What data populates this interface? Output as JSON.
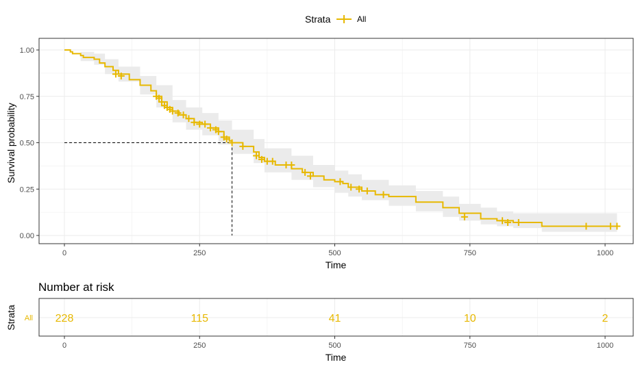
{
  "legend": {
    "title": "Strata",
    "entries": [
      "All"
    ]
  },
  "colors": {
    "series": "#E7B800",
    "band": "#ebebeb",
    "grid": "#ebebeb",
    "panel_border": "#333333",
    "text": "#000000",
    "tick_text": "#4d4d4d"
  },
  "chart_data": [
    {
      "type": "line",
      "subtype": "kaplan-meier survival curve with confidence band",
      "title": "",
      "xlabel": "Time",
      "ylabel": "Survival probability",
      "xlim": [
        0,
        1022
      ],
      "ylim": [
        0,
        1
      ],
      "x_ticks": [
        0,
        250,
        500,
        750,
        1000
      ],
      "y_ticks": [
        0.0,
        0.25,
        0.5,
        0.75,
        1.0
      ],
      "y_tick_labels": [
        "0.00",
        "0.25",
        "0.50",
        "0.75",
        "1.00"
      ],
      "grid": true,
      "legend_position": "top",
      "series": [
        {
          "name": "All",
          "steps": [
            [
              0,
              1.0
            ],
            [
              11,
              0.99
            ],
            [
              15,
              0.98
            ],
            [
              30,
              0.97
            ],
            [
              35,
              0.96
            ],
            [
              55,
              0.95
            ],
            [
              65,
              0.93
            ],
            [
              75,
              0.91
            ],
            [
              90,
              0.89
            ],
            [
              100,
              0.87
            ],
            [
              120,
              0.84
            ],
            [
              140,
              0.81
            ],
            [
              160,
              0.78
            ],
            [
              170,
              0.75
            ],
            [
              180,
              0.72
            ],
            [
              190,
              0.69
            ],
            [
              200,
              0.67
            ],
            [
              212,
              0.65
            ],
            [
              225,
              0.63
            ],
            [
              240,
              0.61
            ],
            [
              255,
              0.6
            ],
            [
              270,
              0.58
            ],
            [
              285,
              0.56
            ],
            [
              295,
              0.53
            ],
            [
              305,
              0.51
            ],
            [
              310,
              0.5
            ],
            [
              330,
              0.48
            ],
            [
              350,
              0.45
            ],
            [
              360,
              0.42
            ],
            [
              370,
              0.4
            ],
            [
              390,
              0.38
            ],
            [
              420,
              0.36
            ],
            [
              440,
              0.34
            ],
            [
              460,
              0.32
            ],
            [
              480,
              0.3
            ],
            [
              500,
              0.29
            ],
            [
              515,
              0.28
            ],
            [
              525,
              0.26
            ],
            [
              550,
              0.24
            ],
            [
              575,
              0.22
            ],
            [
              600,
              0.21
            ],
            [
              650,
              0.18
            ],
            [
              700,
              0.15
            ],
            [
              730,
              0.12
            ],
            [
              770,
              0.09
            ],
            [
              800,
              0.08
            ],
            [
              830,
              0.07
            ],
            [
              883,
              0.05
            ]
          ],
          "end_x": 1022,
          "censored": [
            [
              95,
              0.87
            ],
            [
              105,
              0.86
            ],
            [
              170,
              0.75
            ],
            [
              175,
              0.74
            ],
            [
              180,
              0.72
            ],
            [
              185,
              0.7
            ],
            [
              190,
              0.69
            ],
            [
              195,
              0.68
            ],
            [
              200,
              0.67
            ],
            [
              210,
              0.66
            ],
            [
              220,
              0.65
            ],
            [
              230,
              0.63
            ],
            [
              240,
              0.61
            ],
            [
              250,
              0.6
            ],
            [
              260,
              0.6
            ],
            [
              270,
              0.58
            ],
            [
              280,
              0.57
            ],
            [
              285,
              0.56
            ],
            [
              295,
              0.53
            ],
            [
              300,
              0.52
            ],
            [
              310,
              0.5
            ],
            [
              330,
              0.48
            ],
            [
              355,
              0.43
            ],
            [
              365,
              0.41
            ],
            [
              375,
              0.4
            ],
            [
              385,
              0.4
            ],
            [
              410,
              0.38
            ],
            [
              420,
              0.38
            ],
            [
              445,
              0.34
            ],
            [
              455,
              0.32
            ],
            [
              510,
              0.29
            ],
            [
              530,
              0.26
            ],
            [
              545,
              0.25
            ],
            [
              560,
              0.24
            ],
            [
              590,
              0.22
            ],
            [
              740,
              0.1
            ],
            [
              810,
              0.08
            ],
            [
              820,
              0.07
            ],
            [
              840,
              0.07
            ],
            [
              965,
              0.05
            ],
            [
              1010,
              0.05
            ],
            [
              1022,
              0.05
            ]
          ],
          "ci_lower": [
            [
              0,
              1.0
            ],
            [
              30,
              0.94
            ],
            [
              55,
              0.92
            ],
            [
              75,
              0.87
            ],
            [
              100,
              0.83
            ],
            [
              140,
              0.76
            ],
            [
              170,
              0.69
            ],
            [
              200,
              0.61
            ],
            [
              225,
              0.57
            ],
            [
              255,
              0.54
            ],
            [
              285,
              0.49
            ],
            [
              310,
              0.44
            ],
            [
              350,
              0.39
            ],
            [
              370,
              0.34
            ],
            [
              420,
              0.3
            ],
            [
              460,
              0.26
            ],
            [
              500,
              0.23
            ],
            [
              525,
              0.21
            ],
            [
              550,
              0.19
            ],
            [
              600,
              0.16
            ],
            [
              650,
              0.13
            ],
            [
              700,
              0.1
            ],
            [
              730,
              0.08
            ],
            [
              770,
              0.06
            ],
            [
              800,
              0.05
            ],
            [
              830,
              0.04
            ],
            [
              883,
              0.02
            ],
            [
              1022,
              0.02
            ]
          ],
          "ci_upper": [
            [
              0,
              1.0
            ],
            [
              30,
              0.99
            ],
            [
              55,
              0.98
            ],
            [
              75,
              0.95
            ],
            [
              100,
              0.91
            ],
            [
              140,
              0.86
            ],
            [
              170,
              0.81
            ],
            [
              200,
              0.73
            ],
            [
              225,
              0.69
            ],
            [
              255,
              0.66
            ],
            [
              285,
              0.62
            ],
            [
              310,
              0.57
            ],
            [
              350,
              0.52
            ],
            [
              370,
              0.47
            ],
            [
              420,
              0.43
            ],
            [
              460,
              0.38
            ],
            [
              500,
              0.35
            ],
            [
              525,
              0.33
            ],
            [
              550,
              0.3
            ],
            [
              600,
              0.27
            ],
            [
              650,
              0.24
            ],
            [
              700,
              0.21
            ],
            [
              730,
              0.17
            ],
            [
              770,
              0.15
            ],
            [
              800,
              0.13
            ],
            [
              830,
              0.12
            ],
            [
              883,
              0.12
            ],
            [
              1022,
              0.12
            ]
          ]
        }
      ],
      "median_survival": {
        "time": 310,
        "probability": 0.5
      }
    },
    {
      "type": "table",
      "title": "Number at risk",
      "xlabel": "Time",
      "ylabel": "Strata",
      "row_labels": [
        "All"
      ],
      "x_ticks": [
        0,
        250,
        500,
        750,
        1000
      ],
      "values": [
        "228",
        "115",
        "41",
        "10",
        "2"
      ]
    }
  ]
}
